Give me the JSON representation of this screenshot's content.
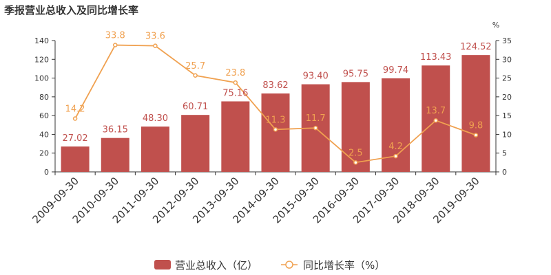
{
  "chart_data": {
    "type": "bar",
    "title": "季报营业总收入及同比增长率",
    "categories": [
      "2009-09-30",
      "2010-09-30",
      "2011-09-30",
      "2012-09-30",
      "2013-09-30",
      "2014-09-30",
      "2015-09-30",
      "2016-09-30",
      "2017-09-30",
      "2018-09-30",
      "2019-09-30"
    ],
    "series": [
      {
        "name": "营业总收入（亿）",
        "type": "bar",
        "axis": "left",
        "color": "#c0504d",
        "values": [
          27.02,
          36.15,
          48.3,
          60.71,
          75.16,
          83.62,
          93.4,
          95.75,
          99.74,
          113.43,
          124.52
        ],
        "labels": [
          "27.02",
          "36.15",
          "48.30",
          "60.71",
          "75.16",
          "83.62",
          "93.40",
          "95.75",
          "99.74",
          "113.43",
          "124.52"
        ]
      },
      {
        "name": "同比增长率（%）",
        "type": "line",
        "axis": "right",
        "color": "#f0a150",
        "values": [
          14.2,
          33.8,
          33.6,
          25.7,
          23.8,
          11.3,
          11.7,
          2.5,
          4.2,
          13.7,
          9.8
        ],
        "labels": [
          "14.2",
          "33.8",
          "33.6",
          "25.7",
          "23.8",
          "11.3",
          "11.7",
          "2.5",
          "4.2",
          "13.7",
          "9.8"
        ]
      }
    ],
    "y_left": {
      "min": 0,
      "max": 140,
      "ticks": [
        0,
        20,
        40,
        60,
        80,
        100,
        120,
        140
      ],
      "tick_labels": [
        "0",
        "20",
        "40",
        "60",
        "80",
        "100",
        "120",
        "140"
      ]
    },
    "y_right": {
      "min": 0,
      "max": 35,
      "ticks": [
        0,
        5,
        10,
        15,
        20,
        25,
        30,
        35
      ],
      "tick_labels": [
        "0",
        "5",
        "10",
        "15",
        "20",
        "25",
        "30",
        "35"
      ],
      "unit": "%"
    },
    "legend_position": "bottom-center",
    "grid": false
  },
  "legend": {
    "bar_label": "营业总收入（亿）",
    "line_label": "同比增长率（%）"
  }
}
